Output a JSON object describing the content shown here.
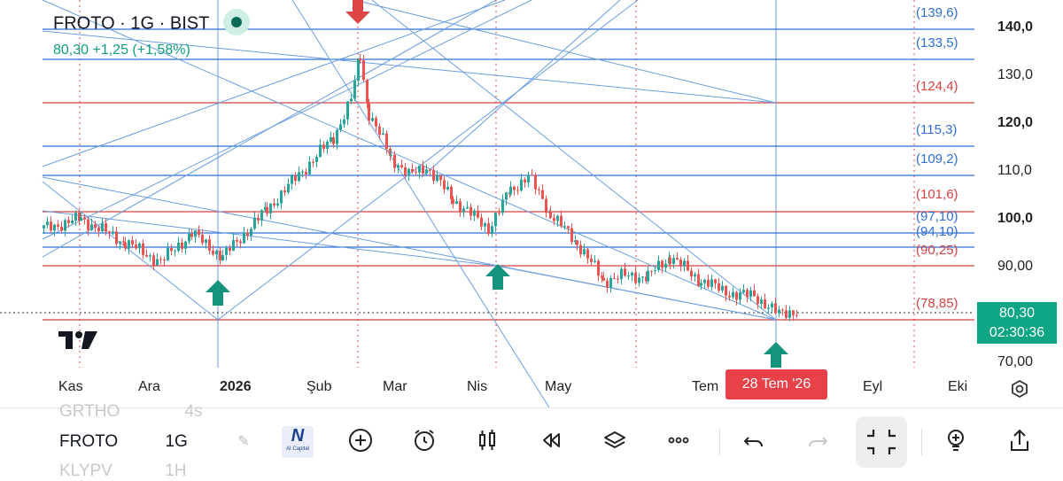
{
  "header": {
    "symbol_line": "FROTO · 1G · BIST",
    "quote_line": "80,30  +1,25 (+1,58%)"
  },
  "price_axis": [
    "140,0",
    "130,0",
    "120,0",
    "110,0",
    "100,0",
    "90,00",
    "70,00"
  ],
  "current_price": {
    "value": "80,30",
    "countdown": "02:30:36"
  },
  "levels": [
    {
      "label": "(139,6)",
      "color": "#2f6fd6"
    },
    {
      "label": "(133,5)",
      "color": "#2f6fd6"
    },
    {
      "label": "(124,4)",
      "color": "#d64141"
    },
    {
      "label": "(115,3)",
      "color": "#2f6fd6"
    },
    {
      "label": "(109,2)",
      "color": "#2f6fd6"
    },
    {
      "label": "(101,6)",
      "color": "#d64141"
    },
    {
      "label": "(97,10)",
      "color": "#2f6fd6"
    },
    {
      "label": "(94,10)",
      "color": "#2f6fd6"
    },
    {
      "label": "(90,25)",
      "color": "#d64141"
    },
    {
      "label": "(78,85)",
      "color": "#d64141"
    }
  ],
  "time_axis": [
    "Kas",
    "Ara",
    "2026",
    "Şub",
    "Mar",
    "Nis",
    "May",
    "Tem",
    "Eyl",
    "Eki"
  ],
  "crosshair_date": "28 Tem '26",
  "watchlist": [
    {
      "symbol": "GRTHO",
      "interval": "4s"
    },
    {
      "symbol": "FROTO",
      "interval": "1G"
    },
    {
      "symbol": "KLYPV",
      "interval": "1H"
    }
  ],
  "toolbar": {
    "brand_label": "AI Capital"
  },
  "chart_data": {
    "type": "candlestick",
    "y_range": [
      70,
      140
    ],
    "colors": {
      "up": "#26a69a",
      "down": "#ef5350",
      "blue_level": "#2f6fd6",
      "red_level": "#d64141"
    },
    "current_price": 80.3
  }
}
